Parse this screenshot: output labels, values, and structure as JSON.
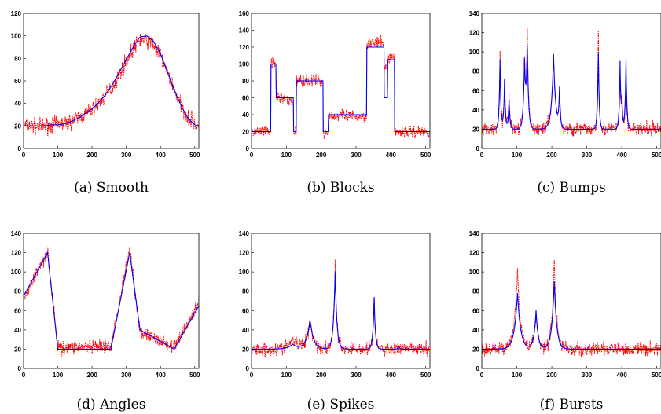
{
  "figure_caption_labels": [
    "(a)",
    "(b)",
    "(c)",
    "(d)",
    "(e)",
    "(f)"
  ],
  "colors": {
    "noisy": "#ff0000",
    "clean": "#0000ff",
    "axes": "#000000"
  },
  "chart_data": [
    {
      "type": "line",
      "caption_label": "(a)",
      "caption_name": "Smooth",
      "xlim": [
        0,
        512
      ],
      "ylim": [
        0,
        120
      ],
      "xticks": [
        0,
        100,
        200,
        300,
        400,
        500
      ],
      "yticks": [
        0,
        20,
        40,
        60,
        80,
        100,
        120
      ],
      "x": [
        0,
        20,
        40,
        60,
        80,
        100,
        120,
        140,
        160,
        180,
        200,
        220,
        240,
        260,
        280,
        300,
        320,
        340,
        360,
        380,
        400,
        420,
        440,
        460,
        480,
        500,
        512
      ],
      "series": [
        {
          "role": "noisy",
          "values": [
            20,
            21,
            19,
            20,
            21,
            22,
            22,
            24,
            27,
            30,
            35,
            40,
            47,
            55,
            66,
            78,
            88,
            97,
            96,
            92,
            82,
            68,
            52,
            38,
            28,
            22,
            18
          ]
        },
        {
          "role": "clean",
          "values": [
            20,
            20,
            20,
            20,
            21,
            21,
            22,
            24,
            27,
            31,
            35,
            41,
            48,
            57,
            68,
            79,
            90,
            99,
            100,
            95,
            84,
            68,
            52,
            38,
            27,
            21,
            20
          ]
        }
      ]
    },
    {
      "type": "line",
      "caption_label": "(b)",
      "caption_name": "Blocks",
      "xlim": [
        0,
        512
      ],
      "ylim": [
        0,
        160
      ],
      "xticks": [
        0,
        100,
        200,
        300,
        400,
        500
      ],
      "yticks": [
        0,
        20,
        40,
        60,
        80,
        100,
        120,
        140,
        160
      ],
      "x": [
        0,
        55,
        56,
        70,
        71,
        100,
        101,
        120,
        121,
        128,
        129,
        205,
        206,
        220,
        221,
        330,
        331,
        380,
        381,
        390,
        391,
        410,
        411,
        512
      ],
      "series": [
        {
          "role": "noisy",
          "values": [
            20,
            20,
            100,
            100,
            60,
            60,
            55,
            55,
            20,
            20,
            80,
            80,
            18,
            18,
            38,
            38,
            125,
            125,
            95,
            95,
            108,
            108,
            20,
            20
          ]
        },
        {
          "role": "clean",
          "values": [
            20,
            20,
            100,
            100,
            60,
            60,
            60,
            60,
            20,
            20,
            80,
            80,
            20,
            20,
            40,
            40,
            120,
            120,
            60,
            60,
            105,
            105,
            20,
            20
          ]
        }
      ]
    },
    {
      "type": "line",
      "caption_label": "(c)",
      "caption_name": "Bumps",
      "xlim": [
        0,
        512
      ],
      "ylim": [
        0,
        140
      ],
      "xticks": [
        0,
        100,
        200,
        300,
        400,
        500
      ],
      "yticks": [
        0,
        20,
        40,
        60,
        80,
        100,
        120,
        140
      ],
      "bumps": [
        {
          "x": 52,
          "clean": 92,
          "noisy": 104,
          "w": 2.5
        },
        {
          "x": 65,
          "clean": 72,
          "noisy": 65,
          "w": 2.5
        },
        {
          "x": 78,
          "clean": 50,
          "noisy": 62,
          "w": 2.5
        },
        {
          "x": 122,
          "clean": 86,
          "noisy": 84,
          "w": 3.5
        },
        {
          "x": 130,
          "clean": 100,
          "noisy": 115,
          "w": 3.5
        },
        {
          "x": 205,
          "clean": 97,
          "noisy": 96,
          "w": 6
        },
        {
          "x": 222,
          "clean": 60,
          "noisy": 55,
          "w": 2.5
        },
        {
          "x": 333,
          "clean": 100,
          "noisy": 122,
          "w": 2.5
        },
        {
          "x": 395,
          "clean": 88,
          "noisy": 68,
          "w": 2.5
        },
        {
          "x": 400,
          "clean": 40,
          "noisy": 50,
          "w": 2.5
        },
        {
          "x": 412,
          "clean": 93,
          "noisy": 72,
          "w": 2.5
        }
      ],
      "baseline": 20
    },
    {
      "type": "line",
      "caption_label": "(d)",
      "caption_name": "Angles",
      "xlim": [
        0,
        512
      ],
      "ylim": [
        0,
        140
      ],
      "xticks": [
        0,
        100,
        200,
        300,
        400,
        500
      ],
      "yticks": [
        0,
        20,
        40,
        60,
        80,
        100,
        120,
        140
      ],
      "x": [
        0,
        70,
        100,
        255,
        310,
        340,
        440,
        512
      ],
      "series": [
        {
          "role": "noisy",
          "values": [
            72,
            122,
            22,
            22,
            125,
            38,
            22,
            68
          ]
        },
        {
          "role": "clean",
          "values": [
            75,
            120,
            20,
            20,
            120,
            40,
            20,
            65
          ]
        }
      ]
    },
    {
      "type": "line",
      "caption_label": "(e)",
      "caption_name": "Spikes",
      "xlim": [
        0,
        512
      ],
      "ylim": [
        0,
        140
      ],
      "xticks": [
        0,
        100,
        200,
        300,
        400,
        500
      ],
      "yticks": [
        0,
        20,
        40,
        60,
        80,
        100,
        120,
        140
      ],
      "bumps": [
        {
          "x": 118,
          "clean": 25,
          "noisy": 30,
          "w": 15
        },
        {
          "x": 168,
          "clean": 50,
          "noisy": 52,
          "w": 10
        },
        {
          "x": 240,
          "clean": 100,
          "noisy": 106,
          "w": 5
        },
        {
          "x": 352,
          "clean": 74,
          "noisy": 76,
          "w": 3.5
        },
        {
          "x": 422,
          "clean": 24,
          "noisy": 22,
          "w": 2.5
        }
      ],
      "baseline": 20
    },
    {
      "type": "line",
      "caption_label": "(f)",
      "caption_name": "Bursts",
      "xlim": [
        0,
        512
      ],
      "ylim": [
        0,
        140
      ],
      "xticks": [
        0,
        100,
        200,
        300,
        400,
        500
      ],
      "yticks": [
        0,
        20,
        40,
        60,
        80,
        100,
        120,
        140
      ],
      "bumps": [
        {
          "x": 102,
          "clean": 78,
          "noisy": 104,
          "w": 9
        },
        {
          "x": 155,
          "clean": 60,
          "noisy": 60,
          "w": 6
        },
        {
          "x": 207,
          "clean": 90,
          "noisy": 110,
          "w": 7
        }
      ],
      "baseline": 20
    }
  ]
}
